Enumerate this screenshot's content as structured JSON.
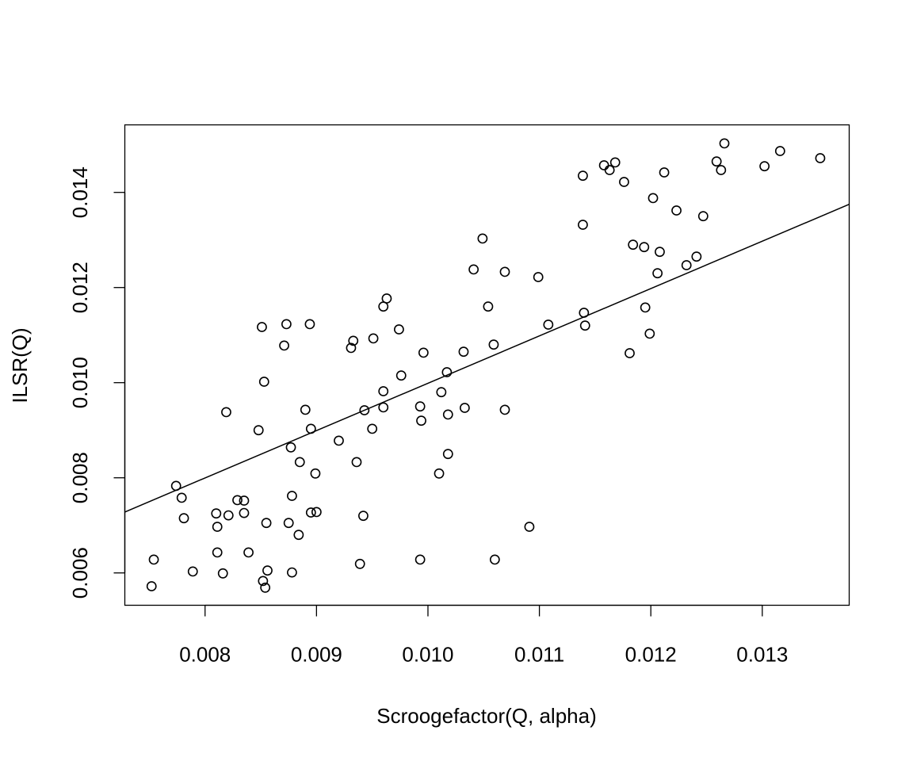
{
  "chart_data": {
    "type": "scatter",
    "title": "",
    "xlabel": "Scroogefactor(Q, alpha)",
    "ylabel": "ILSR(Q)",
    "xlim": [
      0.00728,
      0.01378
    ],
    "ylim": [
      0.00532,
      0.01542
    ],
    "xticks": [
      0.008,
      0.009,
      0.01,
      0.011,
      0.012,
      0.013
    ],
    "xtick_labels": [
      "0.008",
      "0.009",
      "0.010",
      "0.011",
      "0.012",
      "0.013"
    ],
    "yticks": [
      0.006,
      0.008,
      0.01,
      0.012,
      0.014
    ],
    "ytick_labels": [
      "0.006",
      "0.008",
      "0.010",
      "0.012",
      "0.014"
    ],
    "grid": false,
    "legend": "none",
    "marker": "open-circle",
    "colors": {
      "points": "#000000",
      "line": "#000000",
      "frame": "#000000"
    },
    "regression_line": {
      "x": [
        0.00728,
        0.01378
      ],
      "y": [
        0.00728,
        0.01375
      ]
    },
    "points": [
      {
        "x": 0.00754,
        "y": 0.00628
      },
      {
        "x": 0.00752,
        "y": 0.00572
      },
      {
        "x": 0.00774,
        "y": 0.00783
      },
      {
        "x": 0.00779,
        "y": 0.00758
      },
      {
        "x": 0.00781,
        "y": 0.00715
      },
      {
        "x": 0.00789,
        "y": 0.00603
      },
      {
        "x": 0.0081,
        "y": 0.00725
      },
      {
        "x": 0.00811,
        "y": 0.00697
      },
      {
        "x": 0.00811,
        "y": 0.00643
      },
      {
        "x": 0.00816,
        "y": 0.00599
      },
      {
        "x": 0.00819,
        "y": 0.00938
      },
      {
        "x": 0.00821,
        "y": 0.00721
      },
      {
        "x": 0.00829,
        "y": 0.00753
      },
      {
        "x": 0.00835,
        "y": 0.00752
      },
      {
        "x": 0.00835,
        "y": 0.00726
      },
      {
        "x": 0.00839,
        "y": 0.00643
      },
      {
        "x": 0.00848,
        "y": 0.009
      },
      {
        "x": 0.00851,
        "y": 0.01117
      },
      {
        "x": 0.00852,
        "y": 0.00583
      },
      {
        "x": 0.00853,
        "y": 0.01002
      },
      {
        "x": 0.00854,
        "y": 0.00569
      },
      {
        "x": 0.00855,
        "y": 0.00705
      },
      {
        "x": 0.00856,
        "y": 0.00605
      },
      {
        "x": 0.00871,
        "y": 0.01078
      },
      {
        "x": 0.00873,
        "y": 0.01123
      },
      {
        "x": 0.00875,
        "y": 0.00705
      },
      {
        "x": 0.00877,
        "y": 0.00864
      },
      {
        "x": 0.00878,
        "y": 0.00762
      },
      {
        "x": 0.00878,
        "y": 0.00601
      },
      {
        "x": 0.00884,
        "y": 0.0068
      },
      {
        "x": 0.00885,
        "y": 0.00833
      },
      {
        "x": 0.0089,
        "y": 0.00943
      },
      {
        "x": 0.00894,
        "y": 0.01123
      },
      {
        "x": 0.00895,
        "y": 0.00903
      },
      {
        "x": 0.00895,
        "y": 0.00727
      },
      {
        "x": 0.00899,
        "y": 0.00809
      },
      {
        "x": 0.009,
        "y": 0.00728
      },
      {
        "x": 0.0092,
        "y": 0.00878
      },
      {
        "x": 0.00931,
        "y": 0.01073
      },
      {
        "x": 0.00933,
        "y": 0.01088
      },
      {
        "x": 0.00936,
        "y": 0.00833
      },
      {
        "x": 0.00939,
        "y": 0.00619
      },
      {
        "x": 0.00942,
        "y": 0.0072
      },
      {
        "x": 0.00943,
        "y": 0.00942
      },
      {
        "x": 0.0095,
        "y": 0.00903
      },
      {
        "x": 0.00951,
        "y": 0.01093
      },
      {
        "x": 0.0096,
        "y": 0.0116
      },
      {
        "x": 0.0096,
        "y": 0.00982
      },
      {
        "x": 0.0096,
        "y": 0.00948
      },
      {
        "x": 0.00963,
        "y": 0.01177
      },
      {
        "x": 0.00974,
        "y": 0.01112
      },
      {
        "x": 0.00976,
        "y": 0.01015
      },
      {
        "x": 0.00993,
        "y": 0.0095
      },
      {
        "x": 0.00993,
        "y": 0.00628
      },
      {
        "x": 0.00994,
        "y": 0.0092
      },
      {
        "x": 0.00996,
        "y": 0.01063
      },
      {
        "x": 0.0101,
        "y": 0.00809
      },
      {
        "x": 0.01012,
        "y": 0.0098
      },
      {
        "x": 0.01017,
        "y": 0.01022
      },
      {
        "x": 0.01018,
        "y": 0.00933
      },
      {
        "x": 0.01018,
        "y": 0.0085
      },
      {
        "x": 0.01032,
        "y": 0.01065
      },
      {
        "x": 0.01033,
        "y": 0.00947
      },
      {
        "x": 0.01041,
        "y": 0.01238
      },
      {
        "x": 0.01049,
        "y": 0.01303
      },
      {
        "x": 0.01054,
        "y": 0.0116
      },
      {
        "x": 0.01059,
        "y": 0.0108
      },
      {
        "x": 0.0106,
        "y": 0.00628
      },
      {
        "x": 0.01069,
        "y": 0.00943
      },
      {
        "x": 0.01069,
        "y": 0.01233
      },
      {
        "x": 0.01091,
        "y": 0.00697
      },
      {
        "x": 0.01099,
        "y": 0.01222
      },
      {
        "x": 0.01108,
        "y": 0.01122
      },
      {
        "x": 0.01139,
        "y": 0.01435
      },
      {
        "x": 0.01139,
        "y": 0.01332
      },
      {
        "x": 0.0114,
        "y": 0.01147
      },
      {
        "x": 0.01141,
        "y": 0.0112
      },
      {
        "x": 0.01158,
        "y": 0.01457
      },
      {
        "x": 0.01163,
        "y": 0.01447
      },
      {
        "x": 0.01168,
        "y": 0.01463
      },
      {
        "x": 0.01176,
        "y": 0.01422
      },
      {
        "x": 0.01181,
        "y": 0.01062
      },
      {
        "x": 0.01184,
        "y": 0.0129
      },
      {
        "x": 0.01194,
        "y": 0.01285
      },
      {
        "x": 0.01195,
        "y": 0.01158
      },
      {
        "x": 0.01199,
        "y": 0.01103
      },
      {
        "x": 0.01202,
        "y": 0.01388
      },
      {
        "x": 0.01206,
        "y": 0.0123
      },
      {
        "x": 0.01208,
        "y": 0.01275
      },
      {
        "x": 0.01212,
        "y": 0.01442
      },
      {
        "x": 0.01223,
        "y": 0.01362
      },
      {
        "x": 0.01232,
        "y": 0.01247
      },
      {
        "x": 0.01241,
        "y": 0.01265
      },
      {
        "x": 0.01247,
        "y": 0.0135
      },
      {
        "x": 0.01259,
        "y": 0.01465
      },
      {
        "x": 0.01263,
        "y": 0.01447
      },
      {
        "x": 0.01266,
        "y": 0.01503
      },
      {
        "x": 0.01302,
        "y": 0.01455
      },
      {
        "x": 0.01316,
        "y": 0.01487
      },
      {
        "x": 0.01352,
        "y": 0.01472
      }
    ]
  }
}
